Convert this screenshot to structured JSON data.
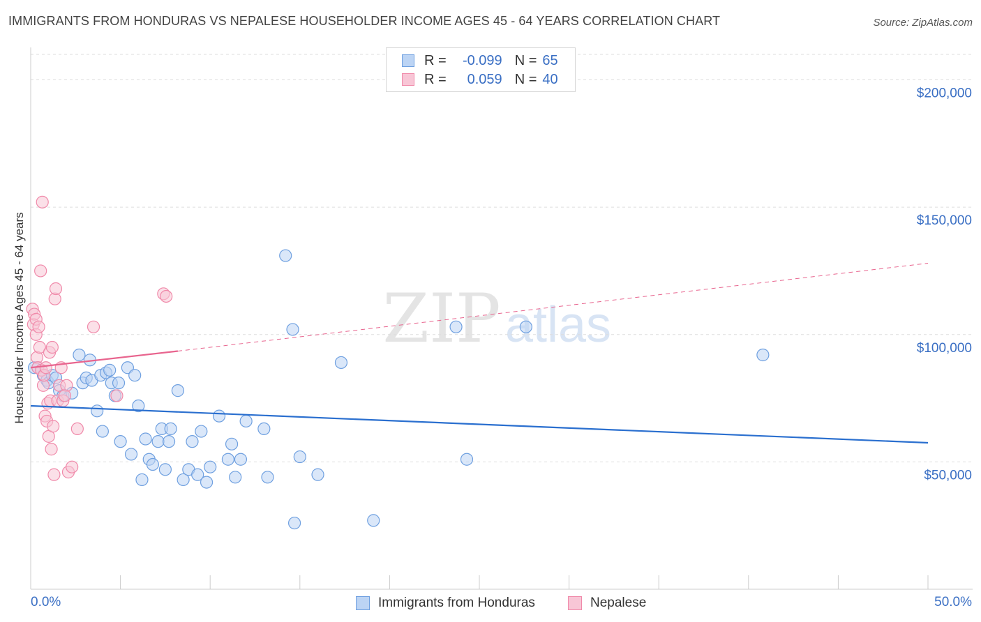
{
  "title": "IMMIGRANTS FROM HONDURAS VS NEPALESE HOUSEHOLDER INCOME AGES 45 - 64 YEARS CORRELATION CHART",
  "source": "Source: ZipAtlas.com",
  "watermark": {
    "zip": "ZIP",
    "atlas": "atlas"
  },
  "legend": {
    "rows": [
      {
        "r_label": "R =",
        "r_value": "-0.099",
        "n_label": "N =",
        "n_value": "65",
        "color": "#6fa0e0"
      },
      {
        "r_label": "R =",
        "r_value": "0.059",
        "n_label": "N =",
        "n_value": "40",
        "color": "#f08aaa"
      }
    ]
  },
  "bottom_legend": {
    "honduras": "Immigrants from Honduras",
    "nepalese": "Nepalese"
  },
  "colors": {
    "honduras_fill": "#bcd4f4",
    "honduras_stroke": "#6fa0e0",
    "honduras_line": "#2a6fcf",
    "nepalese_fill": "#f8c6d6",
    "nepalese_stroke": "#f08aaa",
    "nepalese_line": "#e8648e",
    "axis_text": "#3a6fc4",
    "grid": "#dddddd"
  },
  "chart_data": {
    "type": "scatter",
    "title": "IMMIGRANTS FROM HONDURAS VS NEPALESE HOUSEHOLDER INCOME AGES 45 - 64 YEARS CORRELATION CHART",
    "xlabel": "",
    "ylabel": "Householder Income Ages 45 - 64 years",
    "xlim": [
      0,
      50
    ],
    "ylim": [
      0,
      210000
    ],
    "x_tick_labels": [
      "0.0%",
      "50.0%"
    ],
    "y_ticks": [
      50000,
      100000,
      150000,
      200000
    ],
    "y_tick_labels": [
      "$50,000",
      "$100,000",
      "$150,000",
      "$200,000"
    ],
    "grid": true,
    "series": [
      {
        "name": "Immigrants from Honduras",
        "points": [
          [
            0.2,
            87000
          ],
          [
            0.4,
            87000
          ],
          [
            0.6,
            86000
          ],
          [
            0.7,
            84000
          ],
          [
            0.9,
            82000
          ],
          [
            1.0,
            81000
          ],
          [
            1.2,
            84000
          ],
          [
            1.4,
            83000
          ],
          [
            1.6,
            78000
          ],
          [
            1.8,
            76000
          ],
          [
            2.3,
            77000
          ],
          [
            2.7,
            92000
          ],
          [
            2.9,
            81000
          ],
          [
            3.1,
            83000
          ],
          [
            3.3,
            90000
          ],
          [
            3.4,
            82000
          ],
          [
            3.7,
            70000
          ],
          [
            3.9,
            84000
          ],
          [
            4.0,
            62000
          ],
          [
            4.2,
            85000
          ],
          [
            4.4,
            86000
          ],
          [
            4.5,
            81000
          ],
          [
            4.7,
            76000
          ],
          [
            4.9,
            81000
          ],
          [
            5.0,
            58000
          ],
          [
            5.4,
            87000
          ],
          [
            5.6,
            53000
          ],
          [
            5.8,
            84000
          ],
          [
            6.0,
            72000
          ],
          [
            6.2,
            43000
          ],
          [
            6.4,
            59000
          ],
          [
            6.6,
            51000
          ],
          [
            6.8,
            49000
          ],
          [
            7.1,
            58000
          ],
          [
            7.3,
            63000
          ],
          [
            7.5,
            47000
          ],
          [
            7.7,
            58000
          ],
          [
            7.8,
            63000
          ],
          [
            8.2,
            78000
          ],
          [
            8.5,
            43000
          ],
          [
            8.8,
            47000
          ],
          [
            9.0,
            58000
          ],
          [
            9.3,
            45000
          ],
          [
            9.5,
            62000
          ],
          [
            9.8,
            42000
          ],
          [
            10.0,
            48000
          ],
          [
            10.5,
            68000
          ],
          [
            11.0,
            51000
          ],
          [
            11.2,
            57000
          ],
          [
            11.4,
            44000
          ],
          [
            11.7,
            51000
          ],
          [
            12.0,
            66000
          ],
          [
            13.0,
            63000
          ],
          [
            13.2,
            44000
          ],
          [
            14.2,
            131000
          ],
          [
            14.6,
            102000
          ],
          [
            14.7,
            26000
          ],
          [
            15.0,
            52000
          ],
          [
            16.0,
            45000
          ],
          [
            17.3,
            89000
          ],
          [
            19.1,
            27000
          ],
          [
            23.7,
            103000
          ],
          [
            24.3,
            51000
          ],
          [
            27.6,
            103000
          ],
          [
            40.8,
            92000
          ]
        ]
      },
      {
        "name": "Nepalese",
        "points": [
          [
            0.1,
            110000
          ],
          [
            0.15,
            104000
          ],
          [
            0.2,
            108000
          ],
          [
            0.3,
            100000
          ],
          [
            0.3,
            106000
          ],
          [
            0.35,
            91000
          ],
          [
            0.4,
            87000
          ],
          [
            0.45,
            103000
          ],
          [
            0.5,
            95000
          ],
          [
            0.55,
            125000
          ],
          [
            0.6,
            86000
          ],
          [
            0.65,
            152000
          ],
          [
            0.7,
            80000
          ],
          [
            0.75,
            84000
          ],
          [
            0.8,
            68000
          ],
          [
            0.85,
            87000
          ],
          [
            0.9,
            66000
          ],
          [
            0.95,
            73000
          ],
          [
            1.0,
            60000
          ],
          [
            1.05,
            93000
          ],
          [
            1.1,
            74000
          ],
          [
            1.15,
            55000
          ],
          [
            1.2,
            95000
          ],
          [
            1.25,
            64000
          ],
          [
            1.3,
            45000
          ],
          [
            1.35,
            114000
          ],
          [
            1.4,
            118000
          ],
          [
            1.5,
            74000
          ],
          [
            1.6,
            80000
          ],
          [
            1.7,
            87000
          ],
          [
            1.8,
            74000
          ],
          [
            2.0,
            80000
          ],
          [
            2.1,
            46000
          ],
          [
            2.3,
            48000
          ],
          [
            2.6,
            63000
          ],
          [
            3.5,
            103000
          ],
          [
            4.8,
            76000
          ],
          [
            7.4,
            116000
          ],
          [
            7.55,
            115000
          ],
          [
            1.9,
            76000
          ]
        ]
      }
    ],
    "trend_lines": [
      {
        "series": "Immigrants from Honduras",
        "x": [
          0,
          50
        ],
        "y": [
          72000,
          57500
        ],
        "style": "solid"
      },
      {
        "series": "Nepalese",
        "x": [
          0,
          8.2
        ],
        "y": [
          87000,
          93500
        ],
        "style": "solid"
      },
      {
        "series": "Nepalese",
        "x": [
          8.2,
          50
        ],
        "y": [
          93500,
          128000
        ],
        "style": "dashed"
      }
    ]
  }
}
